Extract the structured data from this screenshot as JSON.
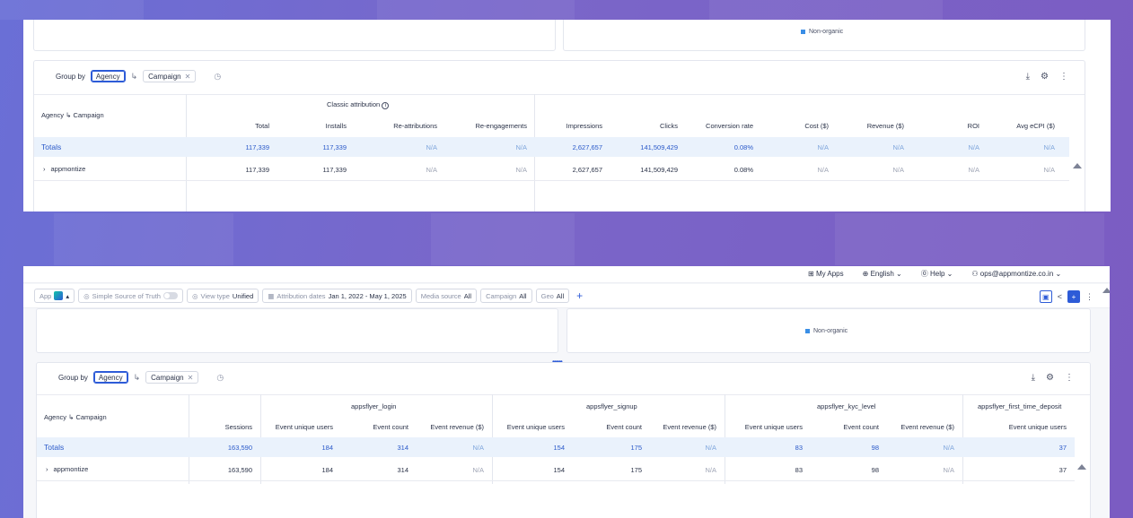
{
  "colors": {
    "accent": "#2d5bd7",
    "legend": "#3a8ee6",
    "totals_bg": "#eaf2fc"
  },
  "legend_label": "Non-organic",
  "top": {
    "group_by_label": "Group by",
    "group_chips": [
      "Agency",
      "Campaign"
    ],
    "table": {
      "row_header": "Agency ↳ Campaign",
      "group_header": "Classic attribution",
      "columns": [
        "Total",
        "Installs",
        "Re-attributions",
        "Re-engagements",
        "Impressions",
        "Clicks",
        "Conversion rate",
        "Cost ($)",
        "Revenue ($)",
        "ROI",
        "Avg eCPI ($)"
      ],
      "totals": {
        "label": "Totals",
        "values": [
          "117,339",
          "117,339",
          "N/A",
          "N/A",
          "2,627,657",
          "141,509,429",
          "0.08%",
          "N/A",
          "N/A",
          "N/A",
          "N/A"
        ]
      },
      "rows": [
        {
          "label": "appmontize",
          "values": [
            "117,339",
            "117,339",
            "N/A",
            "N/A",
            "2,627,657",
            "141,509,429",
            "0.08%",
            "N/A",
            "N/A",
            "N/A",
            "N/A"
          ]
        }
      ]
    }
  },
  "nav": {
    "my_apps": "My Apps",
    "language": "English",
    "help": "Help",
    "user": "ops@appmontize.co.in"
  },
  "filters": {
    "app_label": "App",
    "sst_label": "Simple Source of Truth",
    "view_type_label": "View type",
    "view_type_value": "Unified",
    "dates_label": "Attribution dates",
    "dates_value": "Jan 1, 2022 - May 1, 2025",
    "media_label": "Media source",
    "media_value": "All",
    "campaign_label": "Campaign",
    "campaign_value": "All",
    "geo_label": "Geo",
    "geo_value": "All"
  },
  "bottom": {
    "group_by_label": "Group by",
    "group_chips": [
      "Agency",
      "Campaign"
    ],
    "table": {
      "row_header": "Agency ↳ Campaign",
      "groups": [
        "appsflyer_login",
        "appsflyer_signup",
        "appsflyer_kyc_level",
        "appsflyer_first_time_deposit"
      ],
      "columns": [
        "Sessions",
        "Event unique users",
        "Event count",
        "Event revenue ($)",
        "Event unique users",
        "Event count",
        "Event revenue ($)",
        "Event unique users",
        "Event count",
        "Event revenue ($)",
        "Event unique users"
      ],
      "totals": {
        "label": "Totals",
        "values": [
          "163,590",
          "184",
          "314",
          "N/A",
          "154",
          "175",
          "N/A",
          "83",
          "98",
          "N/A",
          "37"
        ]
      },
      "rows": [
        {
          "label": "appmontize",
          "values": [
            "163,590",
            "184",
            "314",
            "N/A",
            "154",
            "175",
            "N/A",
            "83",
            "98",
            "N/A",
            "37"
          ]
        }
      ]
    }
  }
}
